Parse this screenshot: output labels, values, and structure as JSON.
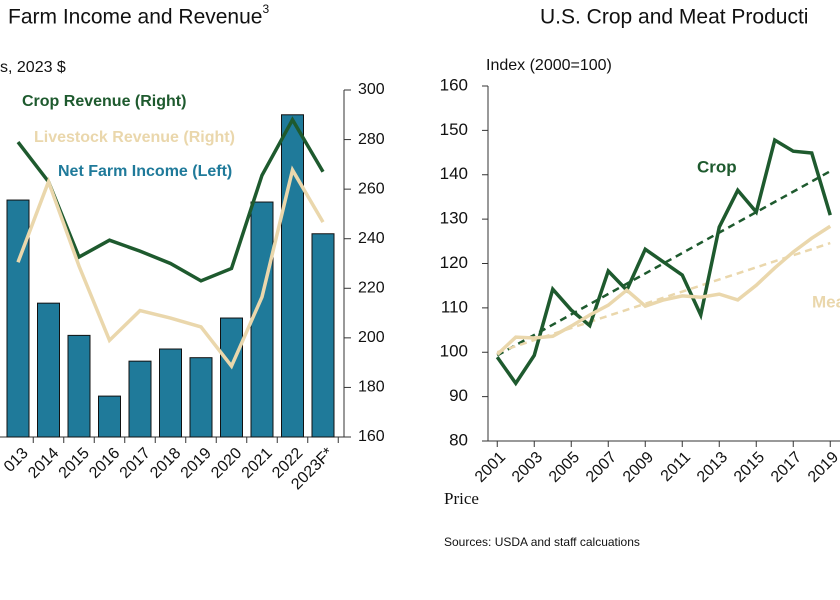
{
  "chart_data": [
    {
      "type": "bar",
      "title": "Farm Income and Revenue",
      "title_superscript": "3",
      "y_label": "s, 2023 $",
      "categories": [
        "013",
        "2014",
        "2015",
        "2016",
        "2017",
        "2018",
        "2019",
        "2020",
        "2021",
        "2022",
        "2023F*"
      ],
      "series": [
        {
          "name": "Net Farm Income (Left)",
          "type": "bar",
          "color": "#1f7a9a",
          "axis": "y2",
          "values": [
            255.6,
            214,
            201,
            176.5,
            190.6,
            195.5,
            192,
            208,
            254.8,
            290,
            242
          ]
        },
        {
          "name": "Crop Revenue (Right)",
          "type": "line",
          "color": "#1e5a2e",
          "axis": "y2",
          "values": [
            279,
            263,
            232.6,
            239.4,
            235,
            230,
            223,
            228,
            265.6,
            288,
            267
          ]
        },
        {
          "name": "Livestock Revenue (Right)",
          "type": "line",
          "color": "#ead7ac",
          "axis": "y2",
          "values": [
            230.5,
            263,
            229,
            199,
            211,
            208,
            204.4,
            188.6,
            216.5,
            267.7,
            246.7
          ]
        }
      ],
      "y2lim": [
        160,
        300
      ],
      "y2ticks": [
        160,
        180,
        200,
        220,
        240,
        260,
        280,
        300
      ]
    },
    {
      "type": "line",
      "title": "U.S. Crop and Meat Producti",
      "y_label": "Index (2000=100)",
      "x": [
        2001,
        2002,
        2003,
        2004,
        2005,
        2006,
        2007,
        2008,
        2009,
        2010,
        2011,
        2012,
        2013,
        2014,
        2015,
        2016,
        2017,
        2018,
        2019
      ],
      "series": [
        {
          "name": "Crop",
          "color": "#1e5a2e",
          "values": [
            98.9,
            93,
            99.3,
            114.2,
            109.5,
            106,
            118.3,
            114,
            123.2,
            120.3,
            117.4,
            108.4,
            128.2,
            136.5,
            131.6,
            147.8,
            145.3,
            144.9,
            130.9
          ]
        },
        {
          "name": "Mea",
          "color": "#ead7ac",
          "values": [
            99.5,
            103.4,
            103.2,
            103.6,
            105.9,
            108.4,
            110.6,
            114,
            110.4,
            111.8,
            112.7,
            112.4,
            113.1,
            111.8,
            115.1,
            119,
            122.6,
            125.7,
            128.4
          ]
        }
      ],
      "trendlines": [
        {
          "color": "#1e5a2e",
          "x": [
            2001,
            2019
          ],
          "values": [
            99.3,
            140.8
          ]
        },
        {
          "color": "#ead7ac",
          "x": [
            2001,
            2019
          ],
          "values": [
            100,
            124.6
          ]
        }
      ],
      "xlim": [
        2000.5,
        2019.5
      ],
      "xticks": [
        2001,
        2003,
        2005,
        2007,
        2009,
        2011,
        2013,
        2015,
        2017,
        2019
      ],
      "ylim": [
        80,
        160
      ],
      "yticks": [
        80,
        90,
        100,
        110,
        120,
        130,
        140,
        150,
        160
      ]
    }
  ],
  "notes": [
    "Price",
    "Sources: USDA and staff calcuations"
  ]
}
